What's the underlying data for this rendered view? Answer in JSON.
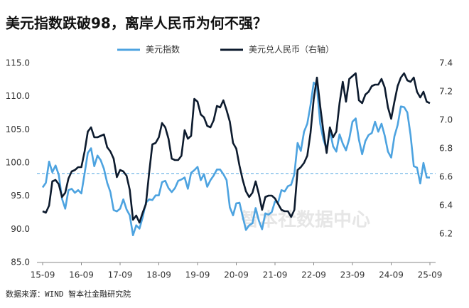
{
  "chart_data": {
    "type": "line",
    "title": "美元指数跌破98，离岸人民币为何不强？",
    "watermark": "智本社数据中心",
    "source": "数据来源：WIND 智本社金融研究院",
    "categories": [
      "15-09",
      null,
      null,
      null,
      null,
      null,
      null,
      null,
      null,
      null,
      null,
      null,
      "16-09",
      null,
      null,
      null,
      null,
      null,
      null,
      null,
      null,
      null,
      null,
      null,
      "17-09",
      null,
      null,
      null,
      null,
      null,
      null,
      null,
      null,
      null,
      null,
      null,
      "18-09",
      null,
      null,
      null,
      null,
      null,
      null,
      null,
      null,
      null,
      null,
      null,
      "19-09",
      null,
      null,
      null,
      null,
      null,
      null,
      null,
      null,
      null,
      null,
      null,
      "20-09",
      null,
      null,
      null,
      null,
      null,
      null,
      null,
      null,
      null,
      null,
      null,
      "21-09",
      null,
      null,
      null,
      null,
      null,
      null,
      null,
      null,
      null,
      null,
      null,
      "22-09",
      null,
      null,
      null,
      null,
      null,
      null,
      null,
      null,
      null,
      null,
      null,
      "23-09",
      null,
      null,
      null,
      null,
      null,
      null,
      null,
      null,
      null,
      null,
      null,
      "24-09",
      null,
      null,
      null,
      null,
      null,
      null,
      null,
      null,
      null,
      null,
      null,
      "25-09"
    ],
    "series": [
      {
        "name": "美元指数",
        "color": "#4da3e0",
        "axis": "y",
        "values": [
          96.3,
          97.0,
          100.2,
          98.6,
          99.6,
          98.2,
          94.6,
          93.1,
          95.9,
          96.1,
          95.5,
          95.9,
          95.4,
          98.4,
          101.5,
          102.2,
          99.5,
          101.1,
          100.4,
          99.1,
          97.0,
          95.6,
          92.9,
          92.7,
          93.1,
          94.5,
          93.0,
          92.1,
          89.1,
          90.6,
          90.1,
          91.8,
          94.0,
          94.5,
          94.4,
          95.1,
          95.1,
          97.1,
          97.3,
          96.2,
          95.6,
          96.2,
          97.3,
          97.5,
          97.8,
          96.1,
          98.5,
          98.9,
          99.4,
          97.4,
          98.3,
          96.4,
          97.4,
          98.1,
          99.0,
          99.0,
          98.3,
          97.4,
          93.3,
          92.1,
          93.9,
          94.0,
          91.9,
          89.9,
          90.6,
          90.9,
          93.2,
          91.3,
          90.0,
          92.4,
          92.2,
          92.6,
          94.2,
          94.1,
          95.9,
          95.7,
          96.5,
          96.7,
          98.3,
          103.0,
          101.8,
          104.7,
          105.9,
          108.7,
          112.1,
          111.5,
          105.9,
          103.5,
          102.1,
          104.9,
          102.5,
          101.7,
          104.3,
          102.9,
          101.9,
          103.6,
          106.2,
          106.7,
          103.5,
          101.3,
          103.3,
          104.2,
          104.5,
          106.2,
          104.7,
          105.9,
          104.1,
          101.7,
          100.8,
          104.0,
          105.7,
          108.5,
          108.4,
          107.6,
          104.2,
          99.5,
          99.3,
          96.9,
          100.0,
          97.8,
          97.8
        ]
      },
      {
        "name": "美元兑人民币（右轴）",
        "color": "#0d1b2e",
        "axis": "y2",
        "values": [
          6.36,
          6.35,
          6.4,
          6.57,
          6.58,
          6.55,
          6.46,
          6.49,
          6.59,
          6.64,
          6.65,
          6.67,
          6.67,
          6.78,
          6.92,
          6.95,
          6.88,
          6.88,
          6.89,
          6.9,
          6.81,
          6.78,
          6.73,
          6.6,
          6.65,
          6.64,
          6.61,
          6.51,
          6.3,
          6.33,
          6.28,
          6.35,
          6.41,
          6.63,
          6.83,
          6.84,
          6.88,
          6.98,
          6.95,
          6.87,
          6.73,
          6.72,
          6.72,
          6.75,
          6.93,
          6.87,
          6.89,
          7.15,
          7.13,
          7.04,
          7.02,
          6.96,
          6.95,
          7.0,
          7.1,
          7.09,
          7.14,
          7.07,
          6.99,
          6.84,
          6.8,
          6.68,
          6.58,
          6.5,
          6.46,
          6.49,
          6.57,
          6.48,
          6.37,
          6.46,
          6.47,
          6.47,
          6.45,
          6.41,
          6.37,
          6.36,
          6.36,
          6.32,
          6.37,
          6.65,
          6.67,
          6.7,
          6.75,
          6.91,
          7.15,
          7.3,
          7.1,
          6.92,
          6.77,
          6.95,
          6.88,
          6.92,
          7.12,
          7.27,
          7.13,
          7.29,
          7.31,
          7.33,
          7.14,
          7.12,
          7.18,
          7.2,
          7.24,
          7.25,
          7.25,
          7.29,
          7.23,
          7.09,
          7.01,
          7.13,
          7.24,
          7.3,
          7.33,
          7.28,
          7.27,
          7.3,
          7.2,
          7.16,
          7.2,
          7.13,
          7.12
        ]
      }
    ],
    "ylim": [
      85,
      115
    ],
    "yticks": [
      {
        "value": 85,
        "label": "85.0"
      },
      {
        "value": 90,
        "label": "90.0"
      },
      {
        "value": 95,
        "label": "95.0"
      },
      {
        "value": 100,
        "label": "100.0"
      },
      {
        "value": 105,
        "label": "105.0"
      },
      {
        "value": 110,
        "label": "110.0"
      },
      {
        "value": 115,
        "label": "115.0"
      }
    ],
    "y2lim": [
      6.0,
      7.4
    ],
    "y2ticks": [
      6.2,
      6.4,
      6.6,
      6.8,
      {
        "value": 7,
        "label": "7.0"
      },
      7.2,
      7.4
    ],
    "reference_line": {
      "value": 98.4,
      "color": "#4da3e0"
    },
    "grid": false
  }
}
